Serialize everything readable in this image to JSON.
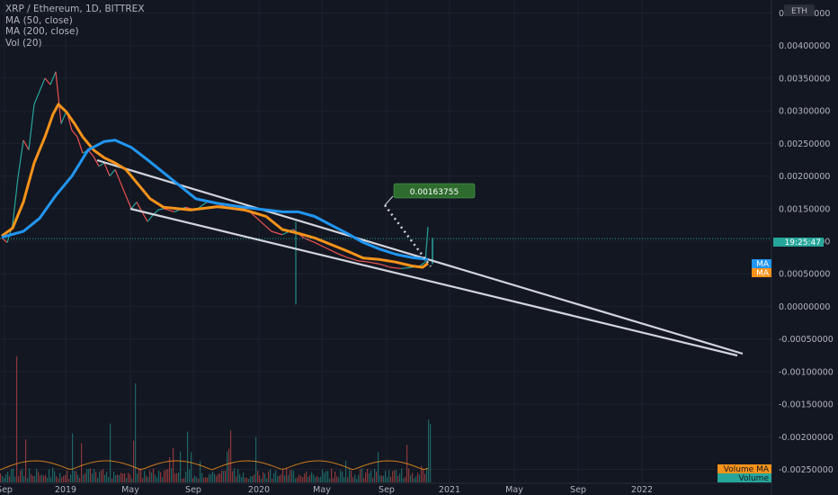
{
  "legend": {
    "title": "XRP / Ethereum, 1D, BITTREX",
    "ma50": "MA (50, close)",
    "ma200": "MA (200, close)",
    "vol": "Vol (20)"
  },
  "axis": {
    "currency": "ETH",
    "price_time": "19:25:47",
    "ma_tag_1": "MA",
    "ma_tag_2": "MA",
    "volume_ma_tag": "Volume MA",
    "volume_tag": "Volume"
  },
  "annotation": {
    "value": "0.00163755"
  },
  "colors": {
    "background": "#131722",
    "ma50": "#f7931a",
    "ma200": "#2196f3",
    "up": "#26a69a",
    "down": "#ef5350",
    "trendline": "#d1d4dc",
    "price_tag": "#26a69a"
  },
  "chart_data": {
    "type": "line",
    "title": "XRP / Ethereum, 1D, BITTREX",
    "ylim": [
      -0.0027,
      0.0047
    ],
    "y_ticks": [
      "0.00450000",
      "0.00400000",
      "0.00350000",
      "0.00300000",
      "0.00250000",
      "0.00200000",
      "0.00150000",
      "0.00100000",
      "0.00050000",
      "0.00000000",
      "-0.00050000",
      "-0.00100000",
      "-0.00150000",
      "-0.00200000",
      "-0.00250000"
    ],
    "x_ticks": [
      "Sep",
      "2019",
      "May",
      "Sep",
      "2020",
      "May",
      "Sep",
      "2021",
      "May",
      "Sep",
      "2022"
    ],
    "series": [
      {
        "name": "MA (50, close)",
        "points": [
          [
            0,
            0.00108
          ],
          [
            4,
            0.0012
          ],
          [
            8,
            0.0016
          ],
          [
            12,
            0.0022
          ],
          [
            16,
            0.0026
          ],
          [
            19,
            0.00295
          ],
          [
            21,
            0.0031
          ],
          [
            24,
            0.00298
          ],
          [
            27,
            0.0028
          ],
          [
            30,
            0.0026
          ],
          [
            34,
            0.0024
          ],
          [
            38,
            0.00228
          ],
          [
            42,
            0.0022
          ],
          [
            46,
            0.0021
          ],
          [
            50,
            0.0019
          ],
          [
            55,
            0.00165
          ],
          [
            60,
            0.00152
          ],
          [
            70,
            0.00148
          ],
          [
            80,
            0.00153
          ],
          [
            90,
            0.00148
          ],
          [
            98,
            0.00138
          ],
          [
            104,
            0.00118
          ],
          [
            110,
            0.00112
          ],
          [
            116,
            0.00105
          ],
          [
            122,
            0.00095
          ],
          [
            128,
            0.00085
          ],
          [
            134,
            0.00074
          ],
          [
            140,
            0.00072
          ],
          [
            146,
            0.00068
          ],
          [
            152,
            0.00062
          ],
          [
            156,
            0.0006
          ],
          [
            158,
            0.00066
          ]
        ]
      },
      {
        "name": "MA (200, close)",
        "points": [
          [
            0,
            0.00106
          ],
          [
            8,
            0.00115
          ],
          [
            14,
            0.00135
          ],
          [
            20,
            0.0017
          ],
          [
            26,
            0.002
          ],
          [
            32,
            0.0024
          ],
          [
            38,
            0.00253
          ],
          [
            42,
            0.00255
          ],
          [
            48,
            0.00244
          ],
          [
            54,
            0.00225
          ],
          [
            60,
            0.00205
          ],
          [
            66,
            0.00185
          ],
          [
            72,
            0.00165
          ],
          [
            80,
            0.00158
          ],
          [
            90,
            0.00152
          ],
          [
            98,
            0.00148
          ],
          [
            104,
            0.00145
          ],
          [
            110,
            0.00145
          ],
          [
            116,
            0.00138
          ],
          [
            122,
            0.00125
          ],
          [
            128,
            0.00112
          ],
          [
            134,
            0.00098
          ],
          [
            140,
            0.00088
          ],
          [
            146,
            0.0008
          ],
          [
            152,
            0.00075
          ],
          [
            158,
            0.00072
          ]
        ]
      },
      {
        "name": "price",
        "points": [
          [
            0,
            0.00105
          ],
          [
            2,
            0.00098
          ],
          [
            4,
            0.00125
          ],
          [
            6,
            0.00198
          ],
          [
            8,
            0.00255
          ],
          [
            10,
            0.0024
          ],
          [
            12,
            0.0031
          ],
          [
            14,
            0.0033
          ],
          [
            16,
            0.0035
          ],
          [
            18,
            0.0034
          ],
          [
            20,
            0.0036
          ],
          [
            22,
            0.0028
          ],
          [
            24,
            0.003
          ],
          [
            26,
            0.0027
          ],
          [
            28,
            0.0026
          ],
          [
            30,
            0.00235
          ],
          [
            32,
            0.0024
          ],
          [
            34,
            0.0023
          ],
          [
            36,
            0.00215
          ],
          [
            38,
            0.0022
          ],
          [
            40,
            0.002
          ],
          [
            42,
            0.0021
          ],
          [
            44,
            0.0019
          ],
          [
            46,
            0.0017
          ],
          [
            48,
            0.0015
          ],
          [
            50,
            0.0016
          ],
          [
            52,
            0.00145
          ],
          [
            54,
            0.0013
          ],
          [
            56,
            0.0014
          ],
          [
            58,
            0.00148
          ],
          [
            60,
            0.0015
          ],
          [
            64,
            0.00145
          ],
          [
            68,
            0.00152
          ],
          [
            72,
            0.00148
          ],
          [
            76,
            0.0016
          ],
          [
            80,
            0.00158
          ],
          [
            84,
            0.0015
          ],
          [
            88,
            0.00148
          ],
          [
            92,
            0.00145
          ],
          [
            96,
            0.0013
          ],
          [
            100,
            0.00115
          ],
          [
            104,
            0.0011
          ],
          [
            108,
            0.00118
          ],
          [
            112,
            0.00105
          ],
          [
            116,
            0.00098
          ],
          [
            120,
            0.0009
          ],
          [
            124,
            0.00082
          ],
          [
            128,
            0.00075
          ],
          [
            132,
            0.0007
          ],
          [
            136,
            0.00068
          ],
          [
            140,
            0.00065
          ],
          [
            144,
            0.0006
          ],
          [
            148,
            0.00058
          ],
          [
            152,
            0.0006
          ],
          [
            155,
            0.00062
          ],
          [
            157,
            0.00068
          ],
          [
            158,
            0.00122
          ]
        ]
      }
    ],
    "volume": {
      "max_ylim": 0.0025
    }
  }
}
